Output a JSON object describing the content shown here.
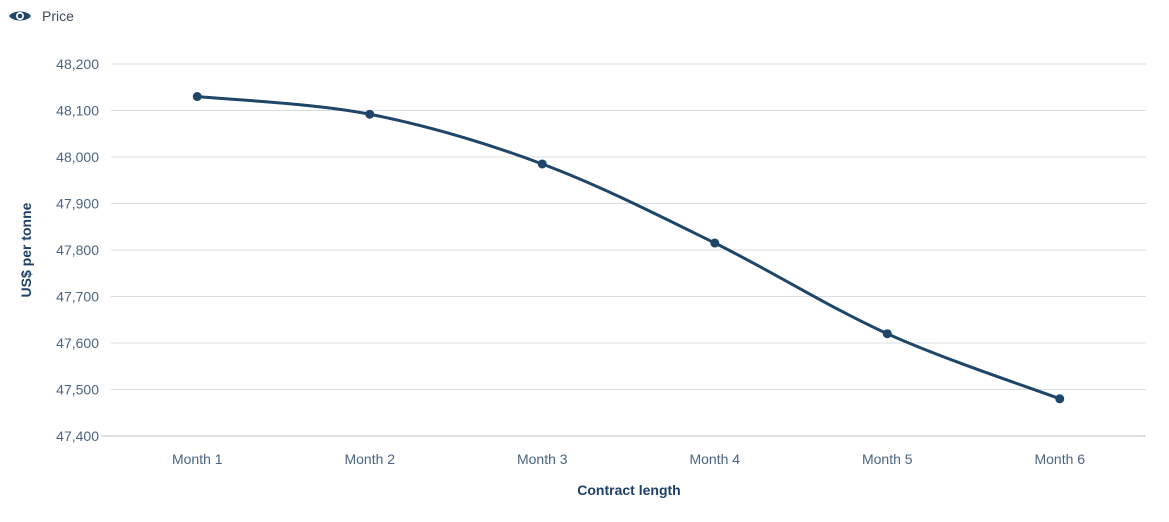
{
  "legend": {
    "label": "Price",
    "icon": "eye-icon",
    "color": "#1f4569"
  },
  "chart_data": {
    "type": "line",
    "title": "",
    "xlabel": "Contract length",
    "ylabel": "US$ per tonne",
    "categories": [
      "Month 1",
      "Month 2",
      "Month 3",
      "Month 4",
      "Month 5",
      "Month 6"
    ],
    "series": [
      {
        "name": "Price",
        "values": [
          48130,
          48092,
          47985,
          47815,
          47620,
          47480
        ],
        "color": "#1f4569"
      }
    ],
    "ylim": [
      47400,
      48200
    ],
    "yticks": [
      48200,
      48100,
      48000,
      47900,
      47800,
      47700,
      47600,
      47500,
      47400
    ],
    "ytick_labels": [
      "48,200",
      "48,100",
      "48,000",
      "47,900",
      "47,800",
      "47,700",
      "47,600",
      "47,500",
      "47,400"
    ],
    "grid": true,
    "legend_position": "top-left"
  }
}
